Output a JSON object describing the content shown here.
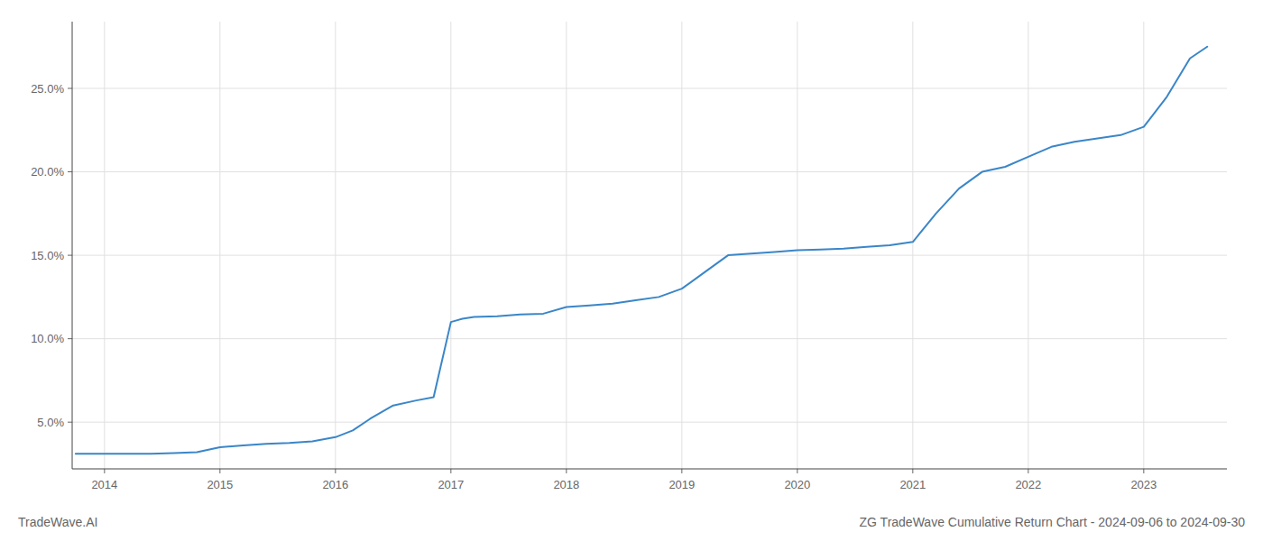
{
  "chart_data": {
    "type": "line",
    "title": "ZG TradeWave Cumulative Return Chart - 2024-09-06 to 2024-09-30",
    "annotations": [
      "TradeWave.AI"
    ],
    "x": [
      2013.75,
      2014.0,
      2014.1,
      2014.2,
      2014.4,
      2014.6,
      2014.8,
      2015.0,
      2015.2,
      2015.4,
      2015.6,
      2015.8,
      2016.0,
      2016.15,
      2016.3,
      2016.5,
      2016.7,
      2016.85,
      2017.0,
      2017.1,
      2017.2,
      2017.4,
      2017.6,
      2017.8,
      2018.0,
      2018.2,
      2018.4,
      2018.6,
      2018.8,
      2019.0,
      2019.2,
      2019.4,
      2019.6,
      2019.8,
      2020.0,
      2020.2,
      2020.4,
      2020.6,
      2020.8,
      2021.0,
      2021.2,
      2021.4,
      2021.6,
      2021.8,
      2022.0,
      2022.2,
      2022.4,
      2022.6,
      2022.8,
      2023.0,
      2023.2,
      2023.4,
      2023.55
    ],
    "values": [
      3.1,
      3.1,
      3.1,
      3.1,
      3.1,
      3.15,
      3.2,
      3.5,
      3.6,
      3.7,
      3.75,
      3.85,
      4.1,
      4.5,
      5.2,
      6.0,
      6.3,
      6.5,
      11.0,
      11.2,
      11.3,
      11.35,
      11.45,
      11.5,
      11.9,
      12.0,
      12.1,
      12.3,
      12.5,
      13.0,
      14.0,
      15.0,
      15.1,
      15.2,
      15.3,
      15.35,
      15.4,
      15.5,
      15.6,
      15.8,
      17.5,
      19.0,
      20.0,
      20.3,
      20.9,
      21.5,
      21.8,
      22.0,
      22.2,
      22.7,
      24.5,
      26.8,
      27.5
    ],
    "color": "#3a86c8",
    "xlim": [
      2013.72,
      2023.72
    ],
    "xticks": [
      2014,
      2015,
      2016,
      2017,
      2018,
      2019,
      2020,
      2021,
      2022,
      2023
    ],
    "ylim": [
      2.2,
      29.0
    ],
    "yticks": [
      {
        "value": 5.0,
        "label": "5.0%"
      },
      {
        "value": 10.0,
        "label": "10.0%"
      },
      {
        "value": 15.0,
        "label": "15.0%"
      },
      {
        "value": 20.0,
        "label": "20.0%"
      },
      {
        "value": 25.0,
        "label": "25.0%"
      }
    ],
    "grid": true
  }
}
